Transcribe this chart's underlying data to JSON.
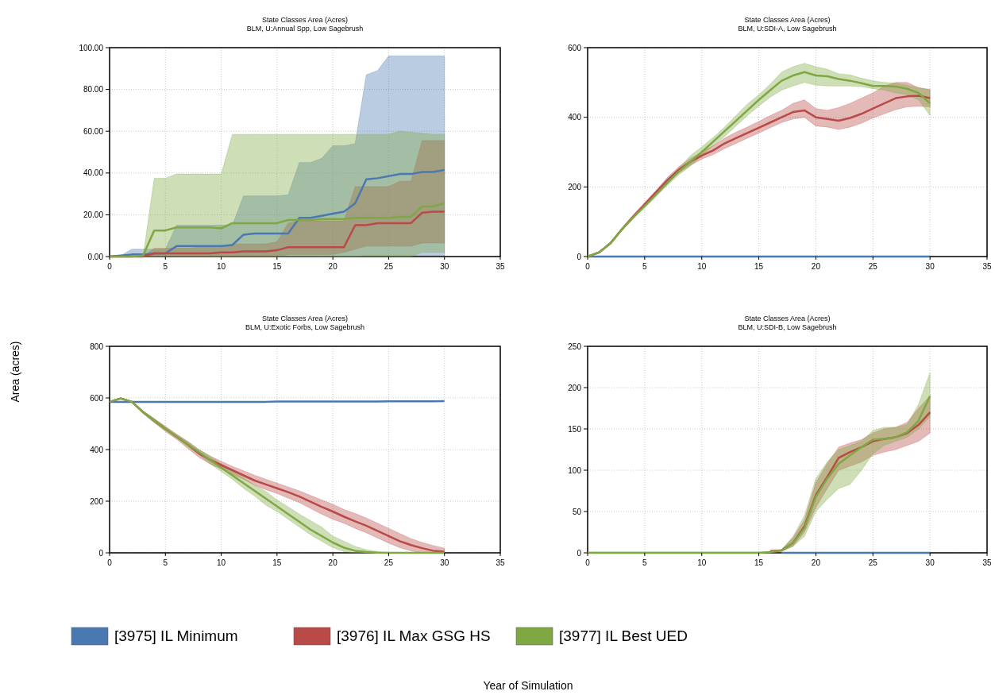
{
  "chart_data": [
    {
      "type": "line",
      "title": "State Classes Area (Acres)",
      "subtitle": "BLM, U:Annual Spp, Low Sagebrush",
      "legend": "bottom",
      "grid": true,
      "x": [
        0,
        1,
        2,
        3,
        4,
        5,
        6,
        7,
        8,
        9,
        10,
        11,
        12,
        13,
        14,
        15,
        16,
        17,
        18,
        19,
        20,
        21,
        22,
        23,
        24,
        25,
        26,
        27,
        28,
        29,
        30
      ],
      "xlim": [
        0,
        35
      ],
      "xticks": [
        0,
        5,
        10,
        15,
        20,
        25,
        30,
        35
      ],
      "ylim": [
        0,
        100
      ],
      "yticks": [
        {
          "value": 0,
          "label": "0.00"
        },
        {
          "value": 20,
          "label": "20.00"
        },
        {
          "value": 40,
          "label": "40.00"
        },
        {
          "value": 60,
          "label": "60.00"
        },
        {
          "value": 80,
          "label": "80.00"
        },
        {
          "value": 100,
          "label": "100.00"
        }
      ],
      "series": [
        {
          "name": "[3975] IL Minimum",
          "color": "#4a78b0",
          "values": [
            0,
            0.5,
            1,
            1,
            1.5,
            1.5,
            5,
            5,
            5,
            5,
            5,
            5.5,
            10.5,
            11,
            11,
            11,
            11,
            18.5,
            18.5,
            19.5,
            20.5,
            21.5,
            25.5,
            37,
            37.5,
            38.5,
            39.5,
            39.5,
            40.5,
            40.5,
            41.5
          ],
          "lower": [
            0,
            0,
            0,
            0,
            0,
            0,
            0,
            0,
            0,
            0,
            0,
            0,
            0,
            0,
            0,
            0,
            0,
            0,
            0,
            0,
            0,
            0,
            0,
            0.5,
            0.5,
            0.5,
            0.5,
            0.5,
            0.5,
            0.5,
            0.5
          ],
          "upper": [
            0,
            0.5,
            3.5,
            3.5,
            3.5,
            3.5,
            15,
            15,
            15,
            15,
            15,
            15,
            29,
            29,
            29,
            29,
            29.5,
            45,
            45,
            47,
            53,
            53,
            54,
            87,
            89,
            96,
            96,
            96,
            96,
            96,
            96
          ]
        },
        {
          "name": "[3976] IL Max GSG HS",
          "color": "#b94a48",
          "values": [
            0,
            0,
            0,
            0,
            1.5,
            1.5,
            1.5,
            1.5,
            1.5,
            1.5,
            2,
            2,
            2.5,
            2.5,
            2.5,
            3,
            4.5,
            4.5,
            4.5,
            4.5,
            4.5,
            4.5,
            15,
            15,
            16,
            16,
            16,
            16,
            21,
            21.5,
            21.5
          ],
          "lower": [
            0,
            0,
            0,
            0,
            0,
            0,
            0,
            0,
            0,
            0,
            0,
            0,
            0,
            0,
            0,
            0,
            1,
            1,
            1,
            1,
            1,
            2,
            3.5,
            5,
            5,
            5,
            5,
            5,
            6.5,
            6.5,
            6.5
          ],
          "upper": [
            0,
            0,
            0,
            0,
            4,
            4,
            4,
            4,
            4.5,
            4.5,
            5,
            6,
            6,
            6,
            6,
            7,
            16,
            17,
            17,
            17,
            17,
            17,
            33.5,
            33.5,
            33.5,
            33.5,
            36,
            36,
            55.5,
            55.5,
            55.5
          ]
        },
        {
          "name": "[3977] IL Best UED",
          "color": "#7fa843",
          "values": [
            0,
            0,
            0,
            0.5,
            12.5,
            12.5,
            14,
            14,
            14,
            14,
            13.5,
            16,
            16,
            16,
            16,
            16,
            17.5,
            17.5,
            17.5,
            18,
            18,
            18,
            18.5,
            18.5,
            18.5,
            18.5,
            19,
            19,
            24,
            24,
            25.5
          ],
          "lower": [
            0,
            0,
            0,
            0,
            0,
            0,
            0,
            0,
            0,
            0,
            0,
            0,
            0,
            0,
            0,
            0,
            0,
            0,
            0,
            0,
            0,
            0,
            0,
            0,
            0,
            0,
            0,
            0,
            2,
            2,
            2
          ],
          "upper": [
            0,
            0,
            0,
            0,
            37.5,
            37.5,
            39.5,
            39.5,
            39.5,
            39.5,
            39.5,
            58.5,
            58.5,
            58.5,
            58.5,
            58.5,
            58.5,
            58.5,
            58.5,
            58.5,
            58.5,
            58.5,
            58.5,
            58.5,
            58.5,
            58.5,
            60,
            59.5,
            59,
            58.5,
            58.5
          ]
        }
      ]
    },
    {
      "type": "line",
      "title": "State Classes Area (Acres)",
      "subtitle": "BLM, U:SDI-A, Low Sagebrush",
      "grid": true,
      "x": [
        0,
        1,
        2,
        3,
        4,
        5,
        6,
        7,
        8,
        9,
        10,
        11,
        12,
        13,
        14,
        15,
        16,
        17,
        18,
        19,
        20,
        21,
        22,
        23,
        24,
        25,
        26,
        27,
        28,
        29,
        30
      ],
      "xlim": [
        0,
        35
      ],
      "xticks": [
        0,
        5,
        10,
        15,
        20,
        25,
        30,
        35
      ],
      "ylim": [
        0,
        600
      ],
      "yticks": [
        0,
        200,
        400,
        600
      ],
      "series": [
        {
          "color": "#4a78b0",
          "values": [
            0,
            0,
            0,
            0,
            0,
            0,
            0,
            0,
            0,
            0,
            0,
            0,
            0,
            0,
            0,
            0,
            0,
            0,
            0,
            0,
            0,
            0,
            0,
            0,
            0,
            0,
            0,
            0,
            0,
            0,
            0
          ]
        },
        {
          "color": "#b94a48",
          "values": [
            0,
            12,
            38,
            78,
            115,
            150,
            185,
            220,
            250,
            272,
            290,
            305,
            325,
            340,
            355,
            370,
            385,
            400,
            415,
            420,
            400,
            395,
            390,
            398,
            410,
            425,
            440,
            455,
            460,
            462,
            455
          ],
          "lower": [
            0,
            10,
            35,
            75,
            110,
            145,
            180,
            212,
            240,
            262,
            280,
            293,
            310,
            325,
            340,
            355,
            370,
            385,
            395,
            400,
            375,
            372,
            365,
            372,
            383,
            398,
            410,
            422,
            430,
            432,
            430
          ],
          "upper": [
            0,
            14,
            42,
            82,
            120,
            155,
            190,
            228,
            258,
            282,
            300,
            318,
            340,
            357,
            372,
            388,
            405,
            420,
            440,
            450,
            425,
            420,
            428,
            440,
            455,
            470,
            490,
            500,
            500,
            485,
            480
          ]
        },
        {
          "color": "#7fa843",
          "values": [
            0,
            12,
            38,
            78,
            113,
            145,
            178,
            212,
            245,
            272,
            300,
            330,
            360,
            390,
            420,
            450,
            478,
            505,
            520,
            530,
            520,
            518,
            510,
            505,
            498,
            490,
            490,
            488,
            482,
            470,
            440
          ],
          "lower": [
            0,
            10,
            35,
            74,
            108,
            140,
            172,
            205,
            235,
            260,
            290,
            318,
            345,
            375,
            405,
            432,
            458,
            478,
            490,
            500,
            492,
            490,
            490,
            490,
            488,
            482,
            478,
            470,
            465,
            450,
            405
          ],
          "upper": [
            0,
            14,
            42,
            82,
            118,
            150,
            185,
            220,
            255,
            290,
            315,
            342,
            372,
            405,
            438,
            465,
            495,
            530,
            545,
            555,
            545,
            538,
            525,
            522,
            512,
            505,
            500,
            498,
            492,
            485,
            478
          ]
        }
      ]
    },
    {
      "type": "line",
      "title": "State Classes Area (Acres)",
      "subtitle": "BLM, U:Exotic Forbs, Low Sagebrush",
      "xlabel": "Year of Simulation",
      "ylabel": "Area (acres)",
      "grid": true,
      "x": [
        0,
        1,
        2,
        3,
        4,
        5,
        6,
        7,
        8,
        9,
        10,
        11,
        12,
        13,
        14,
        15,
        16,
        17,
        18,
        19,
        20,
        21,
        22,
        23,
        24,
        25,
        26,
        27,
        28,
        29,
        30
      ],
      "xlim": [
        0,
        35
      ],
      "xticks": [
        0,
        5,
        10,
        15,
        20,
        25,
        30,
        35
      ],
      "ylim": [
        0,
        800
      ],
      "yticks": [
        0,
        200,
        400,
        600,
        800
      ],
      "series": [
        {
          "color": "#4a78b0",
          "values": [
            585,
            585,
            585,
            585,
            585,
            585,
            585,
            585,
            585,
            585,
            585,
            585,
            585,
            585,
            585,
            586,
            586,
            586,
            586,
            586,
            586,
            586,
            586,
            586,
            586,
            587,
            587,
            587,
            587,
            587,
            588
          ]
        },
        {
          "color": "#b94a48",
          "values": [
            585,
            598,
            585,
            545,
            512,
            480,
            450,
            420,
            385,
            360,
            340,
            320,
            300,
            280,
            265,
            250,
            235,
            218,
            198,
            178,
            160,
            140,
            122,
            105,
            85,
            65,
            45,
            30,
            18,
            8,
            5
          ],
          "lower": [
            585,
            596,
            583,
            540,
            505,
            470,
            440,
            405,
            370,
            345,
            325,
            305,
            285,
            262,
            245,
            230,
            212,
            195,
            172,
            150,
            130,
            115,
            95,
            78,
            58,
            38,
            20,
            8,
            0,
            0,
            0
          ],
          "upper": [
            585,
            600,
            587,
            550,
            520,
            490,
            460,
            432,
            400,
            375,
            355,
            335,
            318,
            300,
            285,
            270,
            255,
            240,
            222,
            205,
            188,
            168,
            152,
            135,
            115,
            95,
            75,
            55,
            40,
            28,
            18
          ]
        },
        {
          "color": "#7fa843",
          "values": [
            585,
            598,
            585,
            545,
            512,
            480,
            450,
            420,
            390,
            360,
            330,
            300,
            270,
            240,
            210,
            180,
            150,
            120,
            90,
            65,
            40,
            20,
            8,
            3,
            1,
            0,
            0,
            0,
            0,
            0,
            0
          ],
          "lower": [
            585,
            596,
            583,
            540,
            505,
            475,
            445,
            412,
            380,
            345,
            315,
            285,
            250,
            220,
            185,
            160,
            130,
            100,
            70,
            45,
            20,
            5,
            0,
            0,
            0,
            0,
            null,
            null,
            null,
            null,
            null
          ],
          "upper": [
            585,
            600,
            587,
            550,
            520,
            488,
            458,
            430,
            400,
            375,
            345,
            318,
            290,
            262,
            238,
            205,
            178,
            150,
            125,
            100,
            65,
            45,
            25,
            12,
            5,
            2,
            null,
            null,
            null,
            null,
            null
          ]
        }
      ]
    },
    {
      "type": "line",
      "title": "State Classes Area (Acres)",
      "subtitle": "BLM, U:SDI-B, Low Sagebrush",
      "grid": true,
      "x": [
        0,
        1,
        2,
        3,
        4,
        5,
        6,
        7,
        8,
        9,
        10,
        11,
        12,
        13,
        14,
        15,
        16,
        17,
        18,
        19,
        20,
        21,
        22,
        23,
        24,
        25,
        26,
        27,
        28,
        29,
        30
      ],
      "xlim": [
        0,
        35
      ],
      "xticks": [
        0,
        5,
        10,
        15,
        20,
        25,
        30,
        35
      ],
      "ylim": [
        0,
        250
      ],
      "yticks": [
        0,
        50,
        100,
        150,
        200,
        250
      ],
      "series": [
        {
          "color": "#4a78b0",
          "values": [
            null,
            null,
            null,
            null,
            null,
            null,
            null,
            null,
            null,
            null,
            null,
            null,
            null,
            null,
            null,
            null,
            null,
            0,
            0,
            0,
            0,
            0,
            0,
            0,
            0,
            0,
            0,
            0,
            0,
            0,
            0
          ]
        },
        {
          "color": "#b94a48",
          "values": [
            null,
            null,
            null,
            null,
            null,
            null,
            null,
            null,
            null,
            null,
            null,
            null,
            null,
            null,
            null,
            null,
            2,
            3,
            12,
            32,
            70,
            92,
            115,
            122,
            128,
            135,
            138,
            140,
            145,
            155,
            170
          ],
          "lower": [
            null,
            null,
            null,
            null,
            null,
            null,
            null,
            null,
            null,
            null,
            null,
            null,
            null,
            null,
            null,
            null,
            1,
            2,
            8,
            25,
            55,
            78,
            100,
            105,
            110,
            118,
            122,
            125,
            130,
            135,
            145
          ],
          "upper": [
            null,
            null,
            null,
            null,
            null,
            null,
            null,
            null,
            null,
            null,
            null,
            null,
            null,
            null,
            null,
            null,
            3,
            4,
            18,
            40,
            85,
            108,
            128,
            133,
            137,
            145,
            150,
            152,
            158,
            175,
            190
          ]
        },
        {
          "color": "#7fa843",
          "values": [
            0,
            0,
            0,
            0,
            0,
            0,
            0,
            0,
            0,
            0,
            0,
            0,
            0,
            0,
            0,
            0,
            1,
            3,
            12,
            30,
            68,
            90,
            108,
            118,
            128,
            137,
            138,
            140,
            146,
            160,
            190
          ],
          "lower": [
            0,
            0,
            0,
            0,
            0,
            0,
            0,
            0,
            0,
            0,
            0,
            0,
            0,
            0,
            0,
            0,
            0,
            2,
            8,
            20,
            50,
            65,
            78,
            83,
            100,
            120,
            130,
            135,
            140,
            150,
            165
          ],
          "upper": [
            1,
            1,
            1,
            1,
            1,
            1,
            1,
            1,
            1,
            1,
            1,
            1,
            1,
            1,
            1,
            1,
            1,
            4,
            20,
            45,
            90,
            110,
            125,
            130,
            135,
            148,
            152,
            152,
            155,
            180,
            218
          ]
        }
      ]
    }
  ]
}
